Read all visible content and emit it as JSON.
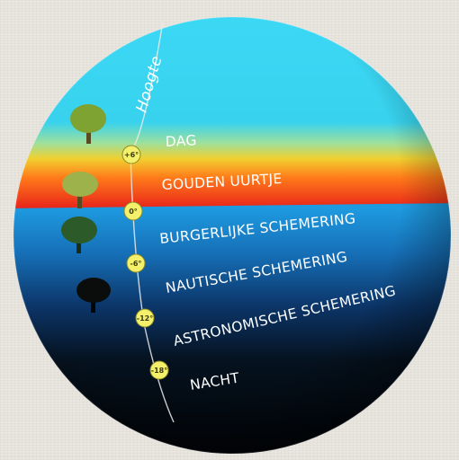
{
  "diagram": {
    "axis_label": "Hoogte",
    "bands": [
      {
        "label": "DAG"
      },
      {
        "label": "GOUDEN UURTJE"
      },
      {
        "label": "BURGERLIJKE SCHEMERING"
      },
      {
        "label": "NAUTISCHE SCHEMERING"
      },
      {
        "label": "ASTRONOMISCHE SCHEMERING"
      },
      {
        "label": "NACHT"
      }
    ],
    "markers": [
      {
        "label": "+6°"
      },
      {
        "label": "0°"
      },
      {
        "label": "-6°"
      },
      {
        "label": "-12°"
      },
      {
        "label": "-18°"
      }
    ],
    "colors": {
      "sky_day": "#3ad3f0",
      "golden_orange": "#ff7a1a",
      "golden_red": "#e8241a",
      "civil_blue": "#1e8ed6",
      "night": "#020509",
      "marker_fill": "#f4f06a",
      "tree_day": "#7fa332",
      "tree_civil": "#2c5a28",
      "tree_night": "#0a0d0b"
    }
  }
}
